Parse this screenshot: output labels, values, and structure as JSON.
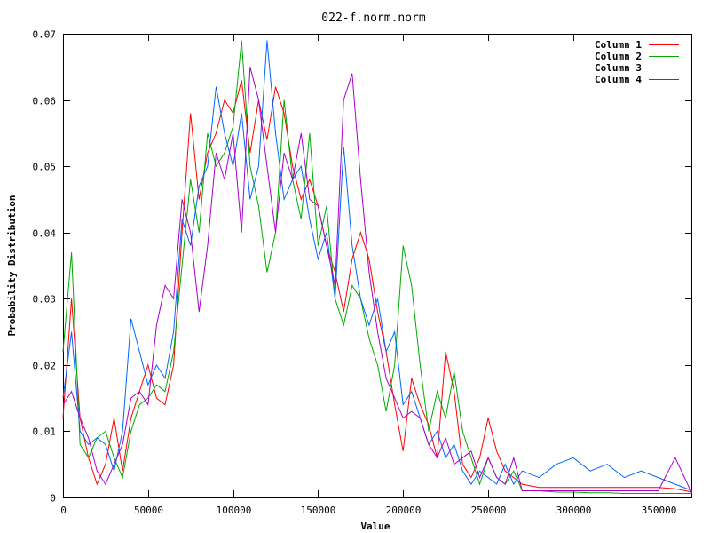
{
  "chart_data": {
    "type": "line",
    "title": "022-f.norm.norm",
    "xlabel": "Value",
    "ylabel": "Probability Distribution",
    "xlim": [
      0,
      370000
    ],
    "ylim": [
      0,
      0.07
    ],
    "xticks": [
      0,
      50000,
      100000,
      150000,
      200000,
      250000,
      300000,
      350000
    ],
    "xtick_labels": [
      "0",
      "50000",
      "100000",
      "150000",
      "200000",
      "250000",
      "300000",
      "350000"
    ],
    "yticks": [
      0,
      0.01,
      0.02,
      0.03,
      0.04,
      0.05,
      0.06,
      0.07
    ],
    "ytick_labels": [
      "0",
      "0.01",
      "0.02",
      "0.03",
      "0.04",
      "0.05",
      "0.06",
      "0.07"
    ],
    "grid": false,
    "legend_position": "top-right",
    "series": [
      {
        "name": "Column 1",
        "color": "#ff0000",
        "x": [
          0,
          5000,
          10000,
          15000,
          20000,
          25000,
          30000,
          35000,
          40000,
          45000,
          50000,
          55000,
          60000,
          65000,
          70000,
          75000,
          80000,
          85000,
          90000,
          95000,
          100000,
          105000,
          110000,
          115000,
          120000,
          125000,
          130000,
          135000,
          140000,
          145000,
          150000,
          155000,
          160000,
          165000,
          170000,
          175000,
          180000,
          185000,
          190000,
          195000,
          200000,
          205000,
          210000,
          215000,
          220000,
          225000,
          230000,
          235000,
          240000,
          245000,
          250000,
          255000,
          260000,
          265000,
          270000,
          280000,
          290000,
          300000,
          310000,
          320000,
          330000,
          340000,
          350000,
          360000,
          370000
        ],
        "y": [
          0.012,
          0.03,
          0.012,
          0.006,
          0.002,
          0.005,
          0.012,
          0.004,
          0.012,
          0.016,
          0.02,
          0.015,
          0.014,
          0.02,
          0.04,
          0.058,
          0.045,
          0.052,
          0.055,
          0.06,
          0.058,
          0.063,
          0.052,
          0.06,
          0.054,
          0.062,
          0.058,
          0.05,
          0.045,
          0.048,
          0.044,
          0.038,
          0.034,
          0.028,
          0.036,
          0.04,
          0.036,
          0.028,
          0.022,
          0.014,
          0.007,
          0.018,
          0.014,
          0.011,
          0.006,
          0.022,
          0.016,
          0.005,
          0.003,
          0.006,
          0.012,
          0.007,
          0.004,
          0.003,
          0.002,
          0.0015,
          0.0015,
          0.0015,
          0.0015,
          0.0015,
          0.0015,
          0.0015,
          0.0015,
          0.0013,
          0.0008
        ]
      },
      {
        "name": "Column 2",
        "color": "#00aa00",
        "x": [
          0,
          5000,
          10000,
          15000,
          20000,
          25000,
          30000,
          35000,
          40000,
          45000,
          50000,
          55000,
          60000,
          65000,
          70000,
          75000,
          80000,
          85000,
          90000,
          95000,
          100000,
          105000,
          110000,
          115000,
          120000,
          125000,
          130000,
          135000,
          140000,
          145000,
          150000,
          155000,
          160000,
          165000,
          170000,
          175000,
          180000,
          185000,
          190000,
          195000,
          200000,
          205000,
          210000,
          215000,
          220000,
          225000,
          230000,
          235000,
          240000,
          245000,
          250000,
          255000,
          260000,
          265000,
          270000,
          280000,
          290000,
          300000,
          310000,
          320000,
          330000,
          340000,
          350000,
          360000,
          370000
        ],
        "y": [
          0.022,
          0.037,
          0.008,
          0.006,
          0.009,
          0.01,
          0.006,
          0.003,
          0.01,
          0.014,
          0.015,
          0.017,
          0.016,
          0.022,
          0.035,
          0.048,
          0.04,
          0.055,
          0.05,
          0.052,
          0.056,
          0.069,
          0.05,
          0.044,
          0.034,
          0.04,
          0.06,
          0.048,
          0.042,
          0.055,
          0.038,
          0.044,
          0.03,
          0.026,
          0.032,
          0.03,
          0.024,
          0.02,
          0.013,
          0.02,
          0.038,
          0.032,
          0.02,
          0.01,
          0.016,
          0.012,
          0.019,
          0.01,
          0.006,
          0.002,
          0.006,
          0.003,
          0.002,
          0.004,
          0.001,
          0.001,
          0.0008,
          0.0008,
          0.0007,
          0.0007,
          0.0006,
          0.0006,
          0.0006,
          0.0006,
          0.0006
        ]
      },
      {
        "name": "Column 3",
        "color": "#0066ff",
        "x": [
          0,
          5000,
          10000,
          15000,
          20000,
          25000,
          30000,
          35000,
          40000,
          45000,
          50000,
          55000,
          60000,
          65000,
          70000,
          75000,
          80000,
          85000,
          90000,
          95000,
          100000,
          105000,
          110000,
          115000,
          120000,
          125000,
          130000,
          135000,
          140000,
          145000,
          150000,
          155000,
          160000,
          165000,
          170000,
          175000,
          180000,
          185000,
          190000,
          195000,
          200000,
          205000,
          210000,
          215000,
          220000,
          225000,
          230000,
          235000,
          240000,
          245000,
          250000,
          255000,
          260000,
          265000,
          270000,
          280000,
          290000,
          300000,
          310000,
          320000,
          330000,
          340000,
          350000,
          360000,
          370000
        ],
        "y": [
          0.015,
          0.025,
          0.01,
          0.008,
          0.009,
          0.008,
          0.004,
          0.01,
          0.027,
          0.022,
          0.017,
          0.02,
          0.018,
          0.025,
          0.042,
          0.038,
          0.047,
          0.05,
          0.062,
          0.055,
          0.05,
          0.058,
          0.045,
          0.05,
          0.069,
          0.055,
          0.045,
          0.048,
          0.05,
          0.042,
          0.036,
          0.04,
          0.03,
          0.053,
          0.038,
          0.03,
          0.026,
          0.03,
          0.022,
          0.025,
          0.014,
          0.016,
          0.012,
          0.008,
          0.01,
          0.006,
          0.008,
          0.004,
          0.002,
          0.004,
          0.003,
          0.002,
          0.005,
          0.002,
          0.004,
          0.003,
          0.005,
          0.006,
          0.004,
          0.005,
          0.003,
          0.004,
          0.003,
          0.002,
          0.001
        ]
      },
      {
        "name": "Column 4",
        "color": "#aa00cc",
        "x": [
          0,
          5000,
          10000,
          15000,
          20000,
          25000,
          30000,
          35000,
          40000,
          45000,
          50000,
          55000,
          60000,
          65000,
          70000,
          75000,
          80000,
          85000,
          90000,
          95000,
          100000,
          105000,
          110000,
          115000,
          120000,
          125000,
          130000,
          135000,
          140000,
          145000,
          150000,
          155000,
          160000,
          165000,
          170000,
          175000,
          180000,
          185000,
          190000,
          195000,
          200000,
          205000,
          210000,
          215000,
          220000,
          225000,
          230000,
          235000,
          240000,
          245000,
          250000,
          255000,
          260000,
          265000,
          270000,
          280000,
          290000,
          300000,
          310000,
          320000,
          330000,
          340000,
          350000,
          360000,
          370000
        ],
        "y": [
          0.014,
          0.016,
          0.012,
          0.009,
          0.004,
          0.002,
          0.005,
          0.008,
          0.015,
          0.016,
          0.014,
          0.026,
          0.032,
          0.03,
          0.045,
          0.04,
          0.028,
          0.038,
          0.052,
          0.048,
          0.055,
          0.04,
          0.065,
          0.06,
          0.05,
          0.04,
          0.052,
          0.048,
          0.055,
          0.045,
          0.044,
          0.038,
          0.032,
          0.06,
          0.064,
          0.048,
          0.034,
          0.025,
          0.018,
          0.015,
          0.012,
          0.013,
          0.012,
          0.008,
          0.006,
          0.009,
          0.005,
          0.006,
          0.007,
          0.003,
          0.006,
          0.003,
          0.002,
          0.006,
          0.001,
          0.001,
          0.001,
          0.001,
          0.001,
          0.001,
          0.001,
          0.001,
          0.001,
          0.006,
          0.0005
        ]
      }
    ]
  }
}
